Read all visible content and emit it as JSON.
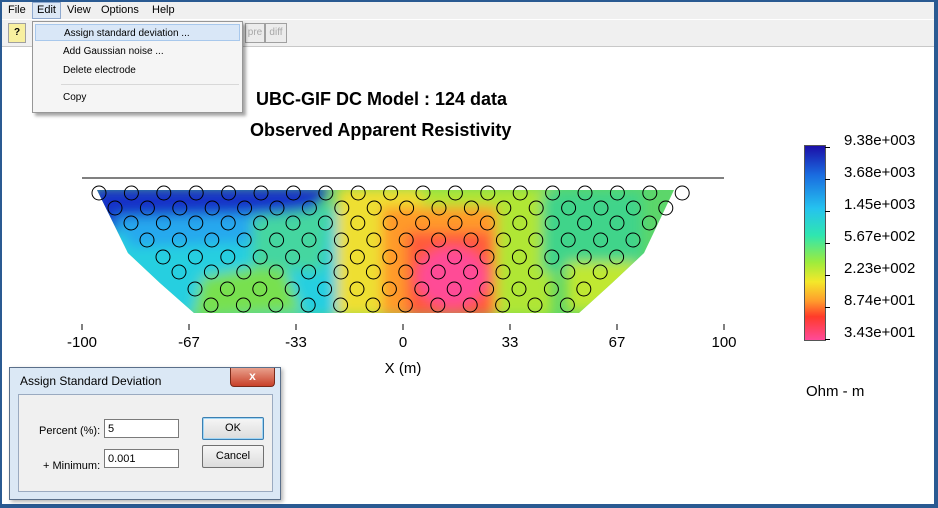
{
  "menubar": {
    "items": [
      "File",
      "Edit",
      "View",
      "Options",
      "Help"
    ]
  },
  "toolbar": {
    "help_glyph": "?",
    "buttons": [
      "pre",
      "diff"
    ]
  },
  "edit_menu": {
    "items": [
      "Assign standard deviation ...",
      "Add Gaussian noise ...",
      "Delete electrode",
      "Copy"
    ]
  },
  "plot": {
    "title": "UBC-GIF DC Model : 124 data",
    "subtitle": "Observed Apparent Resistivity",
    "xlabel": "X (m)",
    "xticks": [
      "-100",
      "-67",
      "-33",
      "0",
      "33",
      "67",
      "100"
    ],
    "colorbar": {
      "labels": [
        "9.38e+003",
        "3.68e+003",
        "1.45e+003",
        "5.67e+002",
        "2.23e+002",
        "8.74e+001",
        "3.43e+001"
      ],
      "unit": "Ohm - m"
    },
    "colors": {
      "deep_blue": "#1b1fc0",
      "cyan": "#28c8f0",
      "green": "#4fe07a",
      "yellow": "#e8ec30",
      "orange": "#ff8a2a",
      "pink": "#ff4c96"
    }
  },
  "chart_data": {
    "type": "heatmap",
    "title": "UBC-GIF DC Model : 124 data",
    "subtitle": "Observed Apparent Resistivity",
    "xlabel": "X (m)",
    "xticks": [
      -100,
      -67,
      -33,
      0,
      33,
      67,
      100
    ],
    "xlim": [
      -100,
      100
    ],
    "colorbar_ticks": [
      9380,
      3680,
      1450,
      567,
      223,
      87.4,
      34.3
    ],
    "colorbar_unit": "Ohm - m",
    "data_count": 124
  },
  "dialog": {
    "title": "Assign Standard Deviation",
    "close_glyph": "x",
    "percent_label": "Percent (%):",
    "percent_value": "5",
    "minimum_label": "+ Minimum:",
    "minimum_value": "0.001",
    "ok_label": "OK",
    "cancel_label": "Cancel"
  }
}
